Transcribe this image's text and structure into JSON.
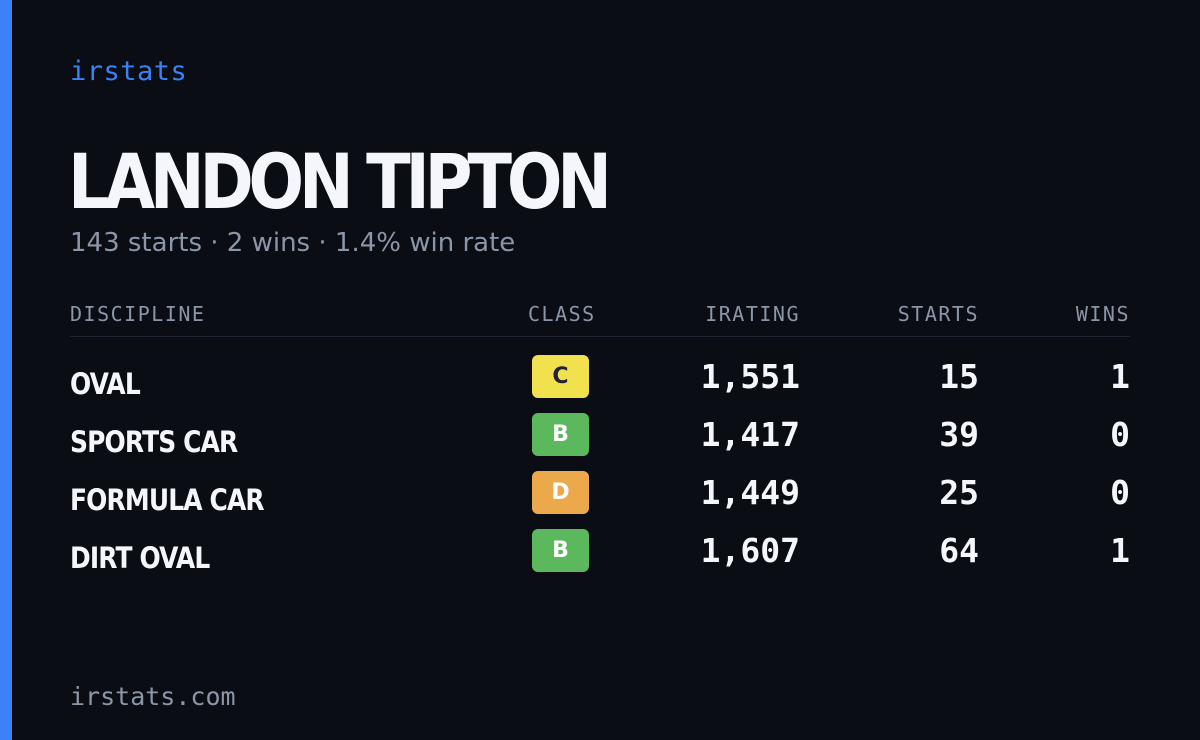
{
  "brand": "irstats",
  "player": {
    "name": "LANDON TIPTON",
    "summary": "143 starts · 2 wins · 1.4% win rate"
  },
  "table": {
    "headers": {
      "discipline": "DISCIPLINE",
      "class": "CLASS",
      "irating": "IRATING",
      "starts": "STARTS",
      "wins": "WINS"
    },
    "rows": [
      {
        "discipline": "OVAL",
        "class": "C",
        "class_color": "#f2e14f",
        "irating": "1,551",
        "starts": "15",
        "wins": "1"
      },
      {
        "discipline": "SPORTS CAR",
        "class": "B",
        "class_color": "#5cb85c",
        "irating": "1,417",
        "starts": "39",
        "wins": "0"
      },
      {
        "discipline": "FORMULA CAR",
        "class": "D",
        "class_color": "#eba94c",
        "irating": "1,449",
        "starts": "25",
        "wins": "0"
      },
      {
        "discipline": "DIRT OVAL",
        "class": "B",
        "class_color": "#5cb85c",
        "irating": "1,607",
        "starts": "64",
        "wins": "1"
      }
    ]
  },
  "footer": "irstats.com",
  "colors": {
    "accent": "#3b82f6",
    "background": "#0a0d14",
    "text_primary": "#f4f6fb",
    "text_secondary": "#8b96a8"
  }
}
